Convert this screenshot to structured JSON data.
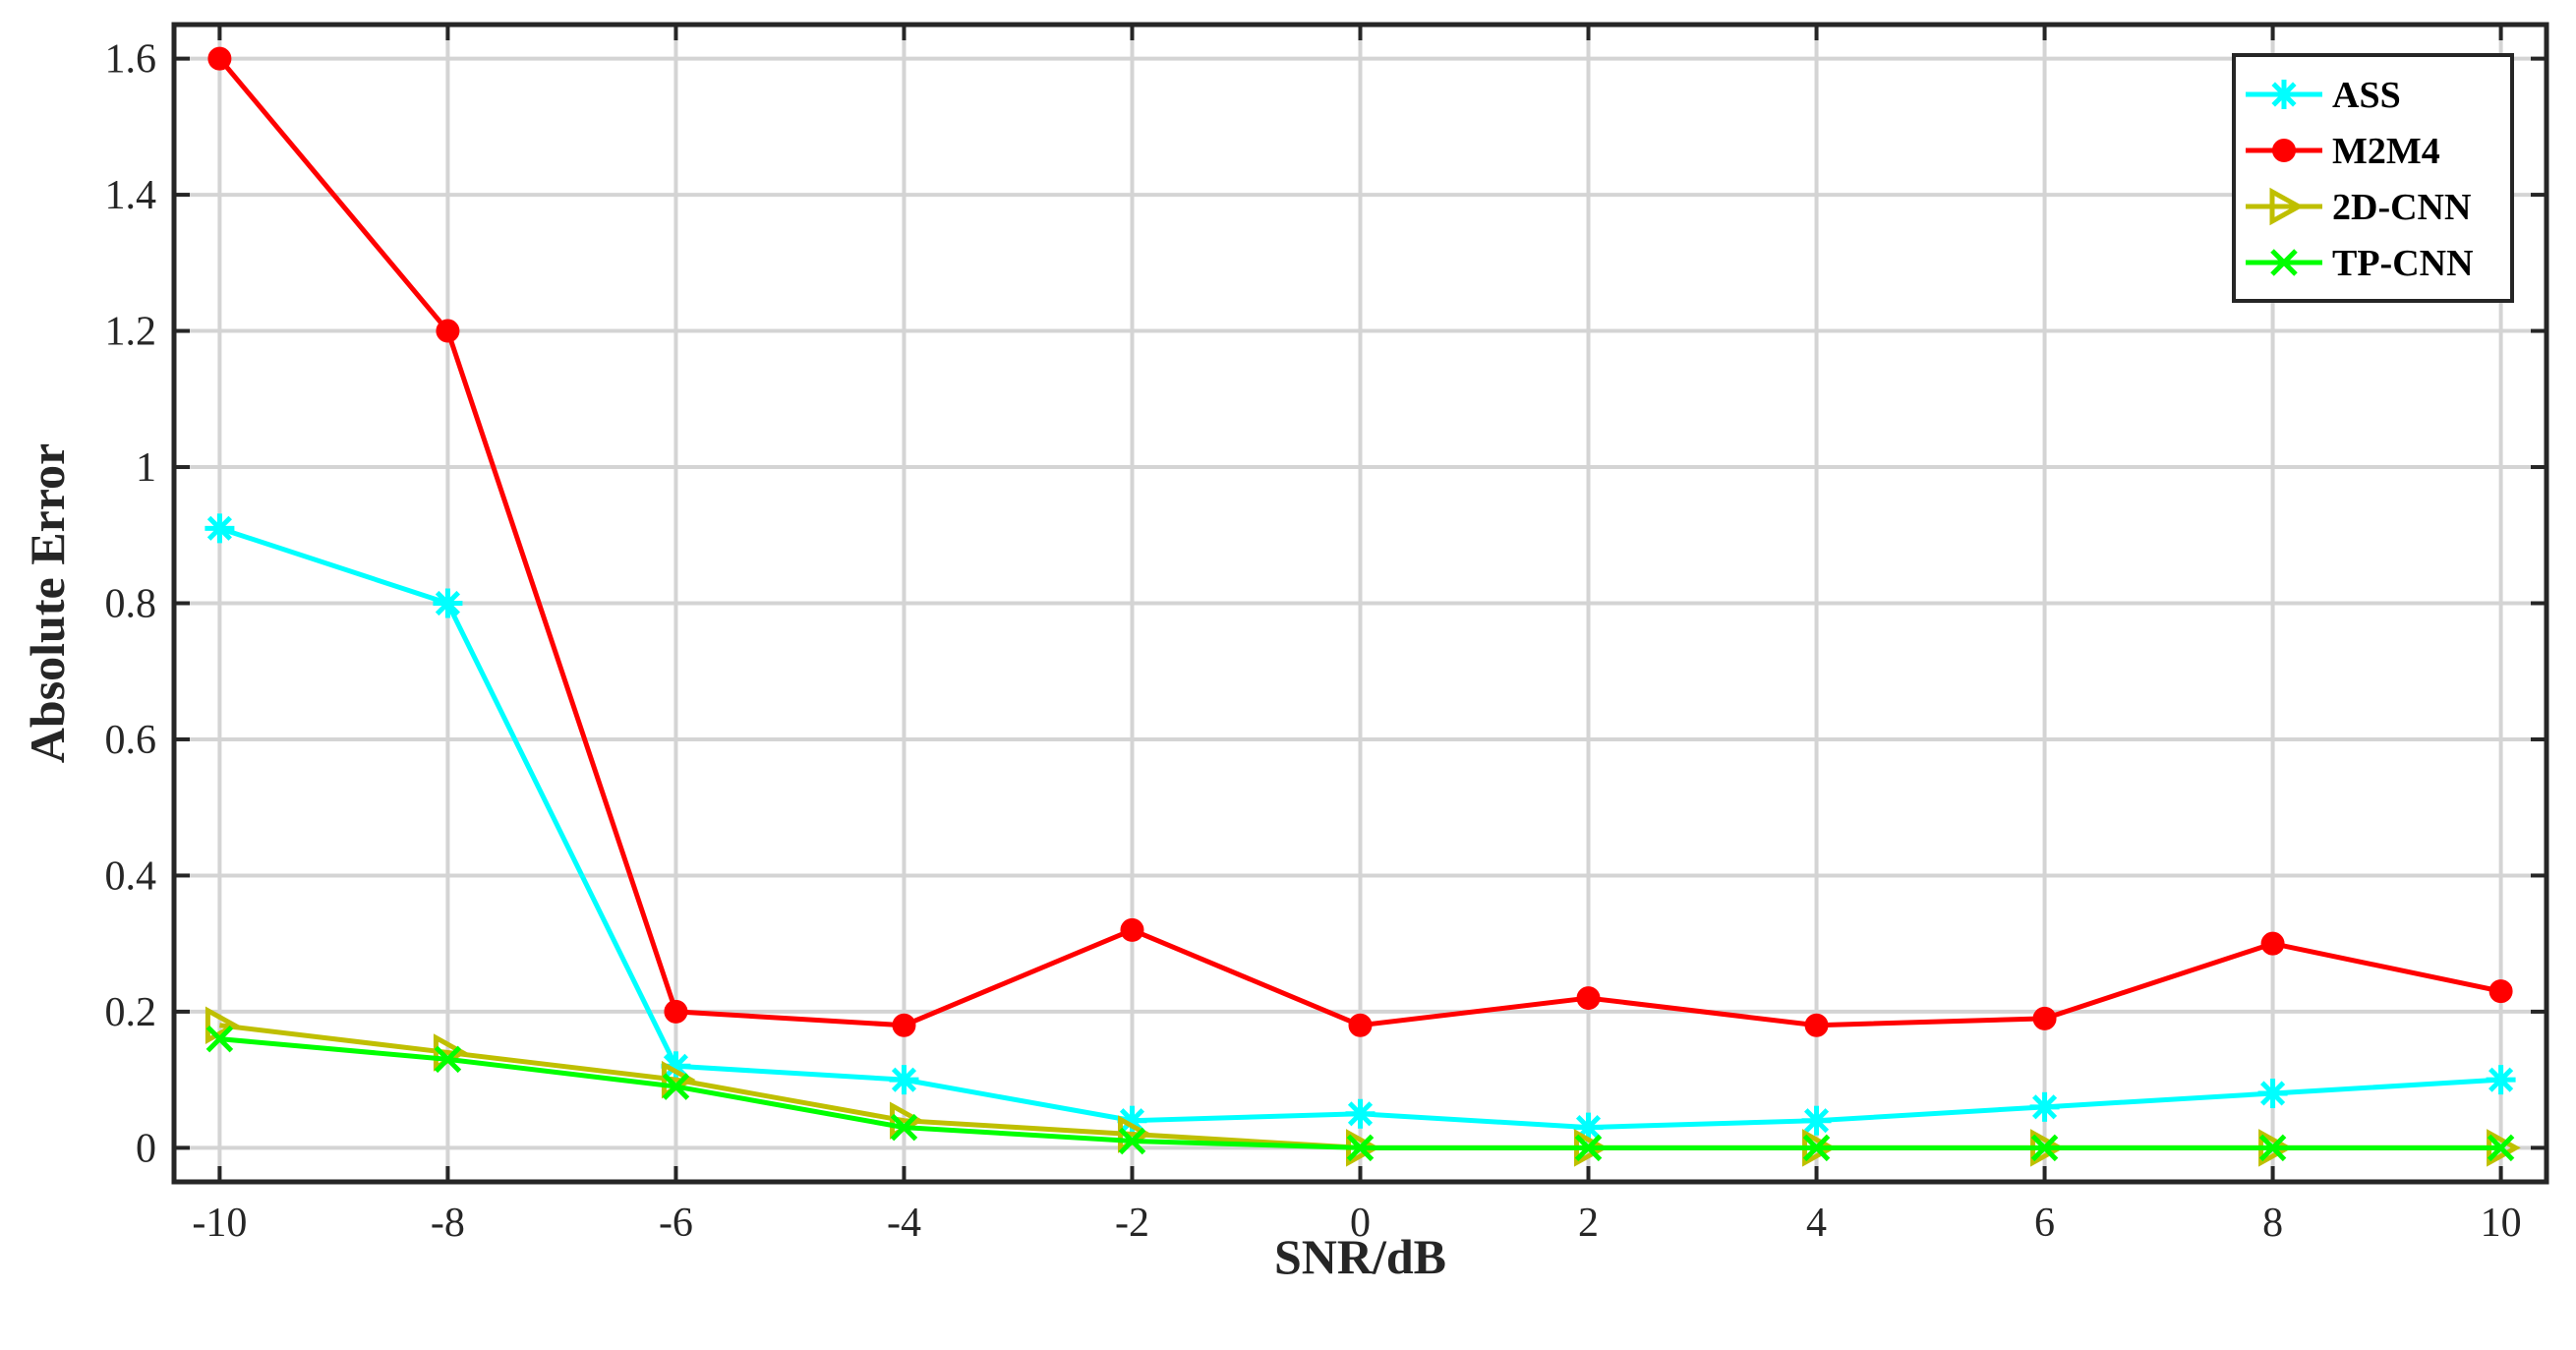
{
  "chart_data": {
    "type": "line",
    "title": "",
    "xlabel": "SNR/dB",
    "ylabel": "Absolute Error",
    "x": [
      -10,
      -8,
      -6,
      -4,
      -2,
      0,
      2,
      4,
      6,
      8,
      10
    ],
    "xticks": [
      "-10",
      "-8",
      "-6",
      "-4",
      "-2",
      "0",
      "2",
      "4",
      "6",
      "8",
      "10"
    ],
    "yticks": [
      "0",
      "0.2",
      "0.4",
      "0.6",
      "0.8",
      "1",
      "1.2",
      "1.4",
      "1.6"
    ],
    "xlim": [
      -10.4,
      10.4
    ],
    "ylim": [
      -0.05,
      1.65
    ],
    "grid": true,
    "legend_position": "top-right",
    "series": [
      {
        "name": "ASS",
        "color": "#00FFFF",
        "marker": "asterisk",
        "values": [
          0.91,
          0.8,
          0.12,
          0.1,
          0.04,
          0.05,
          0.03,
          0.04,
          0.06,
          0.08,
          0.1
        ]
      },
      {
        "name": "M2M4",
        "color": "#FF0000",
        "marker": "circle",
        "values": [
          1.6,
          1.2,
          0.2,
          0.18,
          0.32,
          0.18,
          0.22,
          0.18,
          0.19,
          0.3,
          0.23
        ]
      },
      {
        "name": "2D-CNN",
        "color": "#BFBF00",
        "marker": "triangle-right",
        "values": [
          0.18,
          0.14,
          0.1,
          0.04,
          0.02,
          0.0,
          0.0,
          0.0,
          0.0,
          0.0,
          0.0
        ]
      },
      {
        "name": "TP-CNN",
        "color": "#00FF00",
        "marker": "x",
        "values": [
          0.16,
          0.13,
          0.09,
          0.03,
          0.01,
          0.0,
          0.0,
          0.0,
          0.0,
          0.0,
          0.0
        ]
      }
    ]
  }
}
